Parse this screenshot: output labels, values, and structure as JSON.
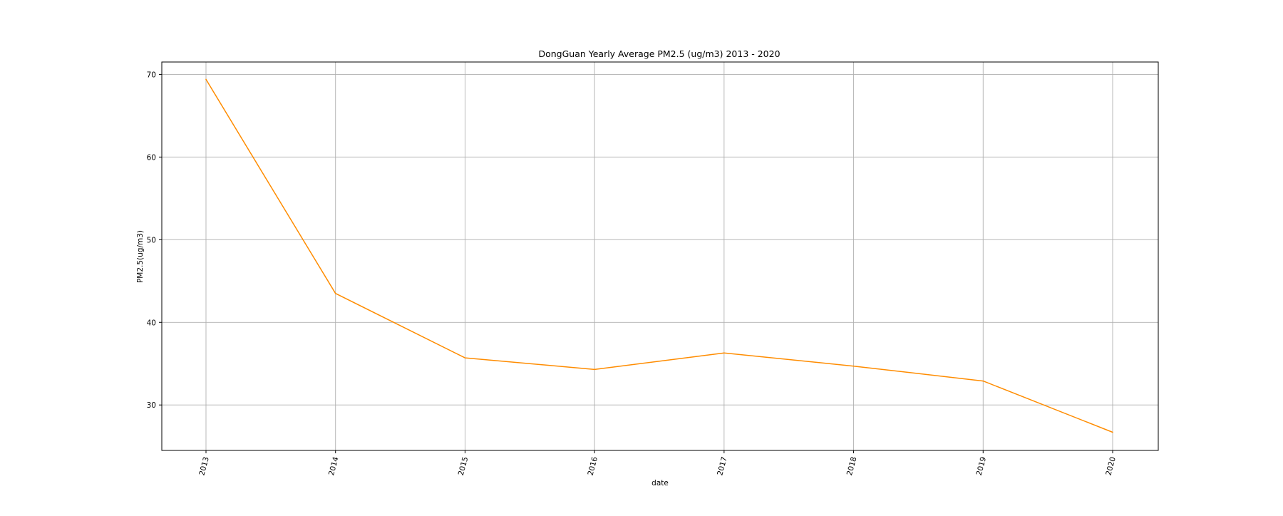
{
  "chart_data": {
    "type": "line",
    "title": "DongGuan Yearly Average PM2.5 (ug/m3) 2013 - 2020",
    "xlabel": "date",
    "ylabel": "PM2.5(ug/m3)",
    "x": [
      "2013",
      "2014",
      "2015",
      "2016",
      "2017",
      "2018",
      "2019",
      "2020"
    ],
    "series": [
      {
        "values": [
          69.4,
          43.5,
          35.7,
          34.3,
          36.3,
          34.7,
          32.9,
          26.7
        ],
        "color": "#ff8c00"
      }
    ],
    "ylim": [
      24.5,
      71.5
    ],
    "yticks": [
      30,
      40,
      50,
      60,
      70
    ],
    "xtick_rotation": "rotated",
    "grid": true,
    "colors": {
      "line": "#ff8c00",
      "grid": "#b0b0b0",
      "axes": "#000000"
    }
  }
}
